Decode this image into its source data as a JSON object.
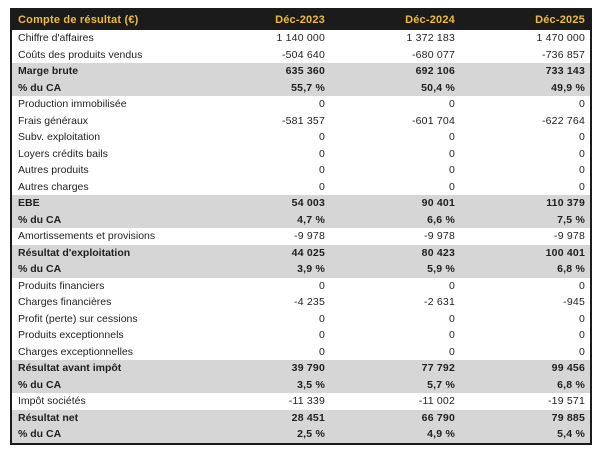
{
  "chart_data": {
    "type": "table",
    "title": "Compte de résultat (€)",
    "columns": [
      "Déc-2023",
      "Déc-2024",
      "Déc-2025"
    ],
    "rows": [
      {
        "label": "Chiffre d'affaires",
        "values": [
          "1 140 000",
          "1 372 183",
          "1 470 000"
        ],
        "emphasis": false
      },
      {
        "label": "Coûts des produits vendus",
        "values": [
          "-504 640",
          "-680 077",
          "-736 857"
        ],
        "emphasis": false
      },
      {
        "label": "Marge brute",
        "values": [
          "635 360",
          "692 106",
          "733 143"
        ],
        "emphasis": true
      },
      {
        "label": "% du CA",
        "values": [
          "55,7 %",
          "50,4 %",
          "49,9 %"
        ],
        "emphasis": true
      },
      {
        "label": "Production immobilisée",
        "values": [
          "0",
          "0",
          "0"
        ],
        "emphasis": false
      },
      {
        "label": "Frais généraux",
        "values": [
          "-581 357",
          "-601 704",
          "-622 764"
        ],
        "emphasis": false
      },
      {
        "label": "Subv. exploitation",
        "values": [
          "0",
          "0",
          "0"
        ],
        "emphasis": false
      },
      {
        "label": "Loyers crédits bails",
        "values": [
          "0",
          "0",
          "0"
        ],
        "emphasis": false
      },
      {
        "label": "Autres produits",
        "values": [
          "0",
          "0",
          "0"
        ],
        "emphasis": false
      },
      {
        "label": "Autres charges",
        "values": [
          "0",
          "0",
          "0"
        ],
        "emphasis": false
      },
      {
        "label": "EBE",
        "values": [
          "54 003",
          "90 401",
          "110 379"
        ],
        "emphasis": true
      },
      {
        "label": "% du CA",
        "values": [
          "4,7 %",
          "6,6 %",
          "7,5 %"
        ],
        "emphasis": true
      },
      {
        "label": "Amortissements et provisions",
        "values": [
          "-9 978",
          "-9 978",
          "-9 978"
        ],
        "emphasis": false
      },
      {
        "label": "Résultat d'exploitation",
        "values": [
          "44 025",
          "80 423",
          "100 401"
        ],
        "emphasis": true
      },
      {
        "label": "% du CA",
        "values": [
          "3,9 %",
          "5,9 %",
          "6,8 %"
        ],
        "emphasis": true
      },
      {
        "label": "Produits financiers",
        "values": [
          "0",
          "0",
          "0"
        ],
        "emphasis": false
      },
      {
        "label": "Charges financières",
        "values": [
          "-4 235",
          "-2 631",
          "-945"
        ],
        "emphasis": false
      },
      {
        "label": "Profit (perte) sur cessions",
        "values": [
          "0",
          "0",
          "0"
        ],
        "emphasis": false
      },
      {
        "label": "Produits exceptionnels",
        "values": [
          "0",
          "0",
          "0"
        ],
        "emphasis": false
      },
      {
        "label": "Charges exceptionnelles",
        "values": [
          "0",
          "0",
          "0"
        ],
        "emphasis": false
      },
      {
        "label": "Résultat avant impôt",
        "values": [
          "39 790",
          "77 792",
          "99 456"
        ],
        "emphasis": true
      },
      {
        "label": "% du CA",
        "values": [
          "3,5 %",
          "5,7 %",
          "6,8 %"
        ],
        "emphasis": true
      },
      {
        "label": "Impôt sociétés",
        "values": [
          "-11 339",
          "-11 002",
          "-19 571"
        ],
        "emphasis": false
      },
      {
        "label": "Résultat net",
        "values": [
          "28 451",
          "66 790",
          "79 885"
        ],
        "emphasis": true
      },
      {
        "label": "% du CA",
        "values": [
          "2,5 %",
          "4,9 %",
          "5,4 %"
        ],
        "emphasis": true
      }
    ],
    "layout": {
      "legend": "none",
      "grid": "off",
      "value_columns_align": "right",
      "emphasis_rows_have_gray_background": true
    }
  },
  "colors": {
    "header_bg": "#1b1b1b",
    "header_text": "#eebd31",
    "emphasis_row_bg": "#d6d6d6",
    "body_text": "#1f1f1f",
    "outer_border": "#1b1b1b"
  }
}
